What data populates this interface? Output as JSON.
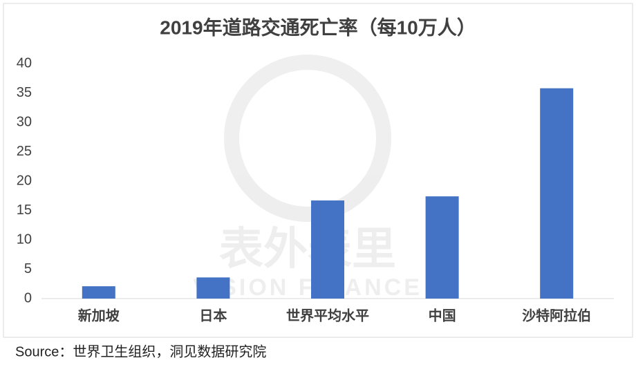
{
  "chart_data": {
    "type": "bar",
    "title": "2019年道路交通死亡率（每10万人）",
    "categories": [
      "新加坡",
      "日本",
      "世界平均水平",
      "中国",
      "沙特阿拉伯"
    ],
    "values": [
      2.1,
      3.6,
      16.7,
      17.4,
      35.8
    ],
    "color": "#4472c4",
    "ylim": [
      0,
      40
    ],
    "yticks": [
      0,
      5,
      10,
      15,
      20,
      25,
      30,
      35,
      40
    ],
    "grid": false,
    "watermark": [
      "表外表里",
      "VISION FINANCE"
    ]
  },
  "source": "Source：世界卫生组织，洞见数据研究院"
}
